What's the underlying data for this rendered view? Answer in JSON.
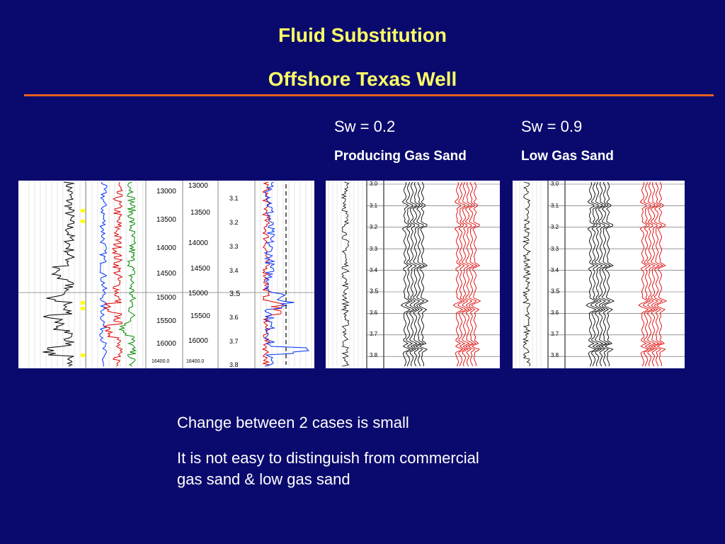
{
  "slide": {
    "title_line1": "Fluid Substitution",
    "title_line2": "Offshore Texas Well",
    "colors": {
      "background": "#0a0a6e",
      "title": "#ffff66",
      "rule": "#e8601c",
      "text": "#ffffff"
    }
  },
  "cases": [
    {
      "sw_label": "Sw = 0.2",
      "description": "Producing Gas Sand"
    },
    {
      "sw_label": "Sw = 0.9",
      "description": "Low Gas Sand"
    }
  ],
  "well_log": {
    "depth_ticks_left": [
      "13000",
      "13500",
      "14000",
      "14500",
      "15000",
      "15500",
      "16000"
    ],
    "depth_bottom_left": "16400.0",
    "depth_ticks_right": [
      "13000",
      "13500",
      "14000",
      "14500",
      "15000",
      "15500",
      "16000"
    ],
    "depth_bottom_right": "16400.0",
    "time_ticks": [
      "3.1",
      "3.2",
      "3.3",
      "3.4",
      "3.5",
      "3.6",
      "3.7",
      "3.8"
    ]
  },
  "seismic_time_ticks": [
    "3.0",
    "3.1",
    "3.2",
    "3.3",
    "3.4",
    "3.5",
    "3.6",
    "3.7",
    "3.8"
  ],
  "notes": {
    "line1": "Change between 2 cases is small",
    "line2": "It is not easy to distinguish from commercial gas sand & low gas sand"
  }
}
